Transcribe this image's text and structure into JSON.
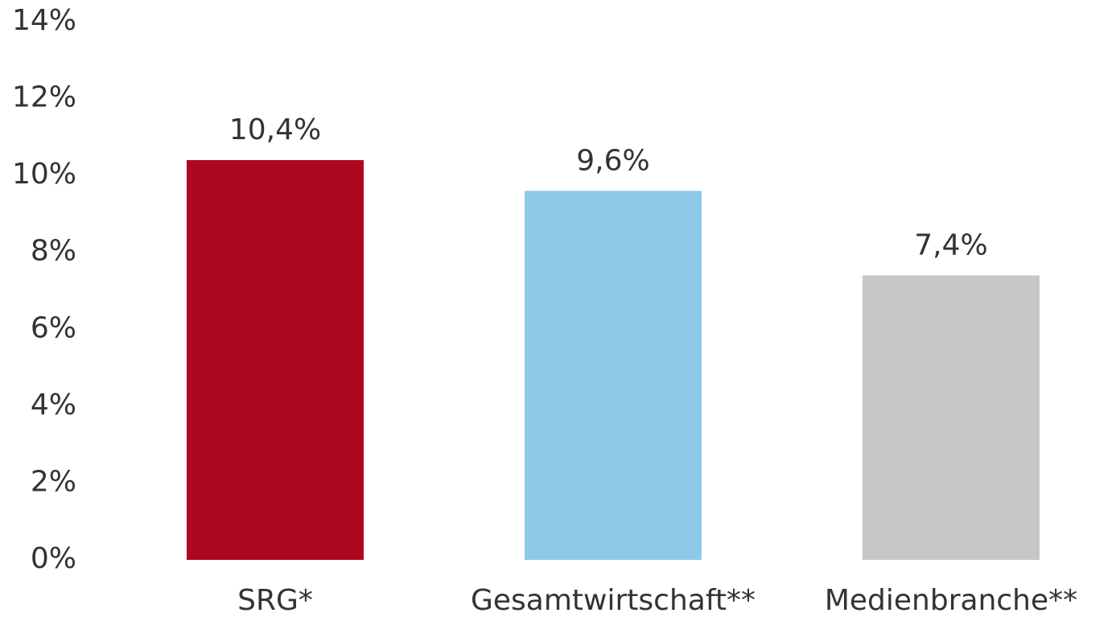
{
  "chart_data": {
    "type": "bar",
    "categories": [
      "SRG*",
      "Gesamtwirtschaft**",
      "Medienbranche**"
    ],
    "values": [
      10.4,
      9.6,
      7.4
    ],
    "value_labels": [
      "10,4%",
      "9,6%",
      "7,4%"
    ],
    "colors": [
      "#ad0820",
      "#8ecae8",
      "#c6c7c6"
    ],
    "ylim": [
      0,
      14
    ],
    "yticks": [
      {
        "value": 0,
        "label": "0%"
      },
      {
        "value": 2,
        "label": "2%"
      },
      {
        "value": 4,
        "label": "4%"
      },
      {
        "value": 6,
        "label": "6%"
      },
      {
        "value": 8,
        "label": "8%"
      },
      {
        "value": 10,
        "label": "10%"
      },
      {
        "value": 12,
        "label": "12%"
      },
      {
        "value": 14,
        "label": "14%"
      }
    ],
    "grid": false
  }
}
